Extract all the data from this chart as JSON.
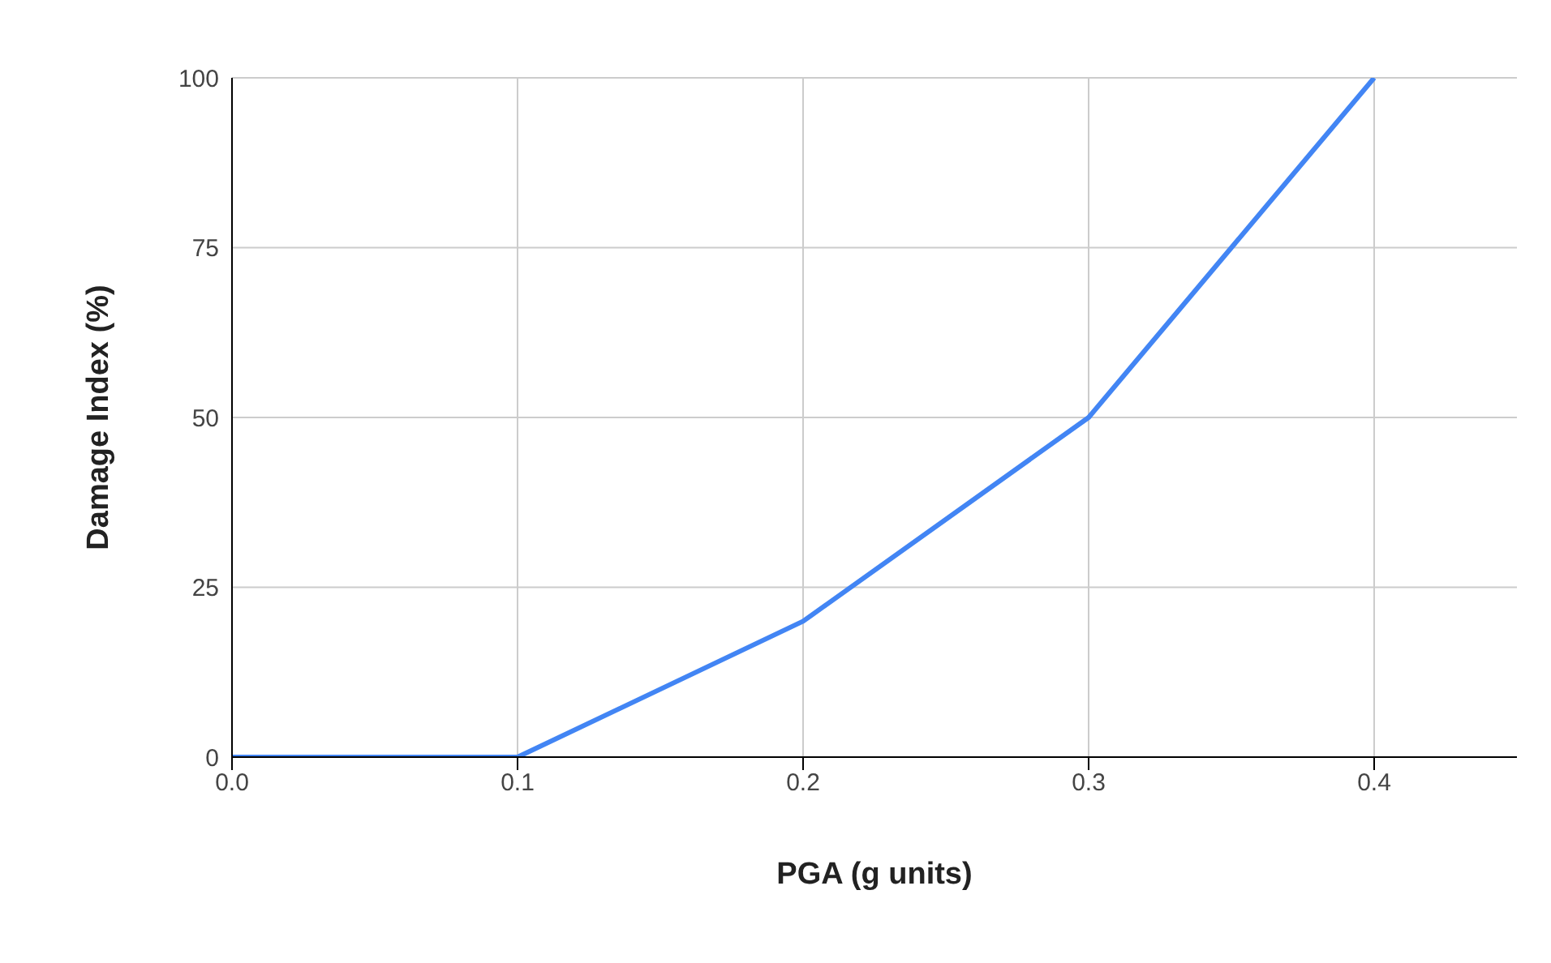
{
  "chart_data": {
    "type": "line",
    "xlabel": "PGA (g units)",
    "ylabel": "Damage Index (%)",
    "x": [
      0,
      0.1,
      0.2,
      0.3,
      0.4
    ],
    "series": [
      {
        "color": "#4285f4",
        "values": [
          0,
          0,
          20,
          50,
          100
        ]
      }
    ],
    "xlim": [
      0,
      0.45
    ],
    "xticks": [
      {
        "value": 0,
        "label": "0.0"
      },
      {
        "value": 0.1,
        "label": "0.1"
      },
      {
        "value": 0.2,
        "label": "0.2"
      },
      {
        "value": 0.3,
        "label": "0.3"
      },
      {
        "value": 0.4,
        "label": "0.4"
      }
    ],
    "ylim": [
      0,
      100
    ],
    "yticks": [
      0,
      25,
      50,
      75,
      100
    ],
    "grid": true,
    "legend": false,
    "marker": "none",
    "line_style": "solid"
  }
}
